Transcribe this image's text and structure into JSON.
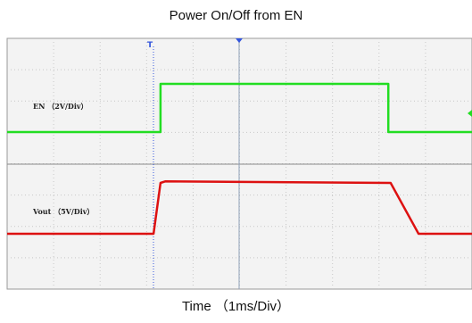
{
  "chart_data": {
    "type": "line",
    "title": "Power On/Off from EN",
    "xlabel": "Time （1ms/Div）",
    "grid": true,
    "x_divisions": 10,
    "xlim": [
      0,
      10
    ],
    "series": [
      {
        "name": "EN （2V/Div）",
        "color": "#22dd22",
        "points": [
          [
            0,
            0
          ],
          [
            3.3,
            0
          ],
          [
            3.3,
            1.0
          ],
          [
            8.2,
            1.0
          ],
          [
            8.2,
            0
          ],
          [
            10,
            0
          ]
        ]
      },
      {
        "name": "Vout （5V/Div）",
        "color": "#dd1111",
        "points": [
          [
            0,
            0
          ],
          [
            3.15,
            0
          ],
          [
            3.3,
            1.0
          ],
          [
            3.4,
            1.03
          ],
          [
            8.25,
            1.0
          ],
          [
            8.85,
            0
          ],
          [
            10,
            0
          ]
        ]
      }
    ],
    "trigger_marker": "T",
    "marker_color": "#3355dd"
  }
}
